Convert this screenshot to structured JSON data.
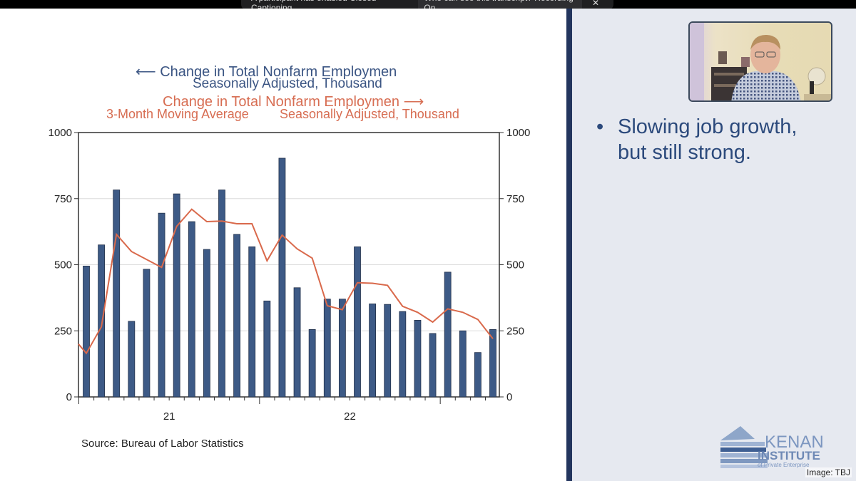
{
  "zoom_bar": {
    "notice_text": "A participant has enabled Closed Captioning",
    "transcript_text": "Who can see this transcript? Recording On",
    "close_label": "✕"
  },
  "slide": {
    "bullet": [
      "Slowing job growth,",
      "but still strong."
    ],
    "source": "Source:  Bureau of Labor Statistics",
    "logo_text": [
      "KENAN",
      "INSTITUTE",
      "of Private Enterprise"
    ],
    "image_credit": "Image: TBJ"
  },
  "colors": {
    "bars": "#3d5a86",
    "line": "#d9694b",
    "divider": "#23355e",
    "panel": "#e6e9f0"
  },
  "chart_data": {
    "type": "bar+line",
    "legend": {
      "left_series_title": "Change in Total Nonfarm Employmen",
      "left_series_subtitle": "Seasonally Adjusted, Thousand",
      "right_series_title": "Change in Total Nonfarm Employmen",
      "right_series_sub1": "3-Month Moving Average",
      "right_series_sub2": "Seasonally Adjusted, Thousand"
    },
    "categories": [
      "2021-01",
      "2021-02",
      "2021-03",
      "2021-04",
      "2021-05",
      "2021-06",
      "2021-07",
      "2021-08",
      "2021-09",
      "2021-10",
      "2021-11",
      "2021-12",
      "2022-01",
      "2022-02",
      "2022-03",
      "2022-04",
      "2022-05",
      "2022-06",
      "2022-07",
      "2022-08",
      "2022-09",
      "2022-10",
      "2022-11",
      "2022-12",
      "2023-01",
      "2023-02",
      "2023-03",
      "2023-04"
    ],
    "x_tick_labels": [
      {
        "label": "21",
        "year": "2021"
      },
      {
        "label": "22",
        "year": "2022"
      }
    ],
    "series": [
      {
        "axis": "left",
        "kind": "bar",
        "values": [
          495,
          575,
          783,
          286,
          483,
          695,
          768,
          663,
          558,
          783,
          615,
          568,
          363,
          903,
          413,
          255,
          370,
          370,
          568,
          352,
          350,
          323,
          290,
          240,
          472,
          250,
          168,
          255
        ]
      },
      {
        "axis": "right",
        "kind": "line",
        "values": [
          165,
          265,
          615,
          550,
          520,
          490,
          645,
          710,
          663,
          665,
          655,
          655,
          515,
          612,
          560,
          525,
          345,
          330,
          432,
          430,
          422,
          343,
          320,
          283,
          333,
          320,
          293,
          220
        ]
      }
    ],
    "ylim_left": [
      0,
      1000
    ],
    "ylim_right": [
      0,
      1000
    ],
    "y_ticks": [
      "0",
      "250",
      "500",
      "750",
      "1000"
    ],
    "grid": "horizontal"
  }
}
